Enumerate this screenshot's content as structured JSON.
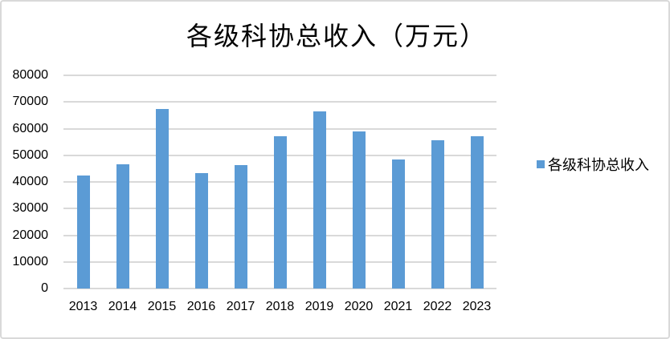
{
  "chart": {
    "title": "各级科协总收入（万元）",
    "legend": {
      "label": "各级科协总收入"
    },
    "colors": {
      "bar": "#5b9bd5",
      "gridline": "#d9d9d9",
      "border": "#d9d9d9",
      "text": "#000000"
    }
  },
  "chart_data": {
    "type": "bar",
    "title": "各级科协总收入（万元）",
    "categories": [
      "2013",
      "2014",
      "2015",
      "2016",
      "2017",
      "2018",
      "2019",
      "2020",
      "2021",
      "2022",
      "2023"
    ],
    "series": [
      {
        "name": "各级科协总收入",
        "values": [
          42500,
          46500,
          67500,
          43200,
          46200,
          57100,
          66400,
          58800,
          48400,
          55600,
          57100
        ]
      }
    ],
    "xlabel": "",
    "ylabel": "",
    "ylim": [
      0,
      80000
    ],
    "y_ticks": [
      0,
      10000,
      20000,
      30000,
      40000,
      50000,
      60000,
      70000,
      80000
    ],
    "grid": true,
    "legend_position": "right"
  }
}
